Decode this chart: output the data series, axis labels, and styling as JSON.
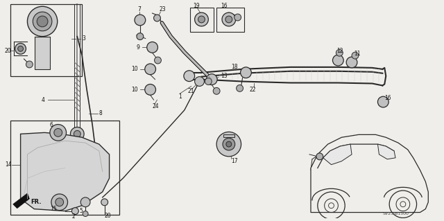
{
  "bg_color": "#f0eeea",
  "diagram_code": "SV23-B1500",
  "fig_width": 6.4,
  "fig_height": 3.19,
  "dpi": 100,
  "lc": "#2a2a2a",
  "lc_light": "#888888"
}
